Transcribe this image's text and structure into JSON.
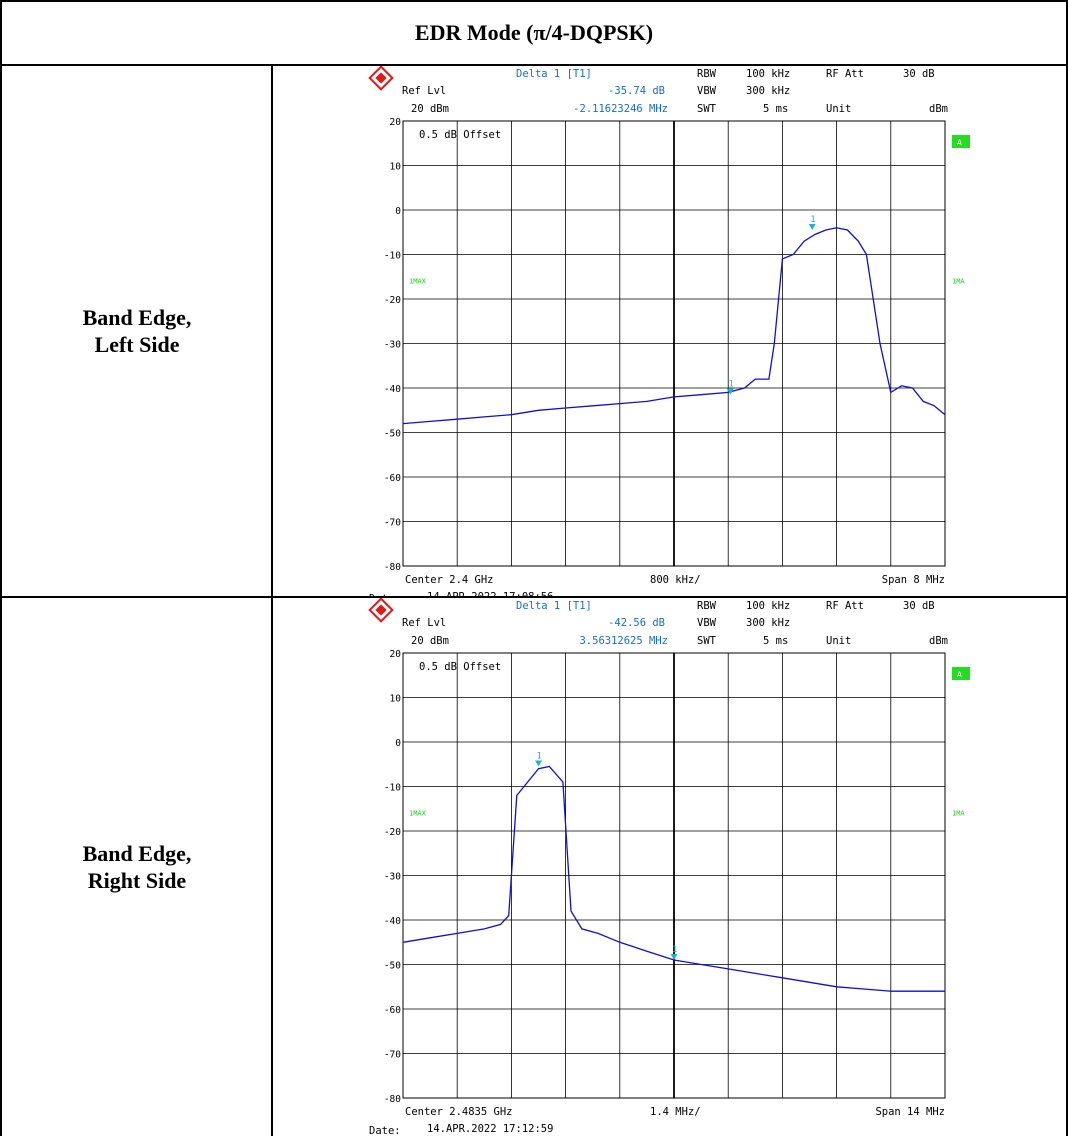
{
  "header": {
    "title": "EDR Mode (π/4-DQPSK)"
  },
  "rows": [
    {
      "label_line1": "Band Edge,",
      "label_line2": "Left Side"
    },
    {
      "label_line1": "Band Edge,",
      "label_line2": "Right Side"
    }
  ],
  "chart_data": [
    {
      "type": "line",
      "title": "Band Edge, Left Side",
      "instrument": {
        "marker_title": "Delta 1 [T1]",
        "marker_level": "-35.74 dB",
        "marker_freq": "-2.11623246 MHz",
        "ref_lvl_label": "Ref Lvl",
        "ref_lvl_value": "20 dBm",
        "rbw_label": "RBW",
        "rbw_value": "100 kHz",
        "vbw_label": "VBW",
        "vbw_value": "300 kHz",
        "swt_label": "SWT",
        "swt_value": "5 ms",
        "rfatt_label": "RF Att",
        "rfatt_value": "30 dB",
        "unit_label": "Unit",
        "unit_value": "dBm",
        "offset_text": "0.5 dB Offset",
        "trace_label_left": "1MAX",
        "trace_label_right": "1MA",
        "a_badge": "A",
        "center_text": "Center 2.4 GHz",
        "div_text": "800 kHz/",
        "span_text": "Span 8 MHz",
        "date_label": "Date:",
        "date_value": "14.APR.2022  17:08:56"
      },
      "y_ticks": [
        "20",
        "10",
        "0",
        "-10",
        "-20",
        "-30",
        "-40",
        "-50",
        "-60",
        "-70",
        "-80"
      ],
      "ylim": [
        -80,
        20
      ],
      "xlim_div": [
        0,
        10
      ],
      "grid": true,
      "trace_color": "#1010cc",
      "trace_x": [
        0,
        0.5,
        1,
        1.5,
        2,
        2.5,
        3,
        3.5,
        4,
        4.5,
        5,
        5.5,
        6,
        6.3,
        6.5,
        6.75,
        6.85,
        7,
        7.2,
        7.4,
        7.6,
        7.8,
        8.0,
        8.2,
        8.4,
        8.55,
        8.8,
        9.0,
        9.2,
        9.4,
        9.6,
        9.8,
        10
      ],
      "trace_y": [
        -48,
        -47.5,
        -47,
        -46.5,
        -46,
        -45,
        -44.5,
        -44,
        -43.5,
        -43,
        -42,
        -41.5,
        -41,
        -40,
        -38,
        -38,
        -30,
        -11,
        -10,
        -7,
        -5.5,
        -4.5,
        -4,
        -4.5,
        -7,
        -10,
        -30,
        -41,
        -39.5,
        -40,
        -43,
        -44,
        -46
      ],
      "markers": [
        {
          "x": 6.04,
          "y": -41.5,
          "label": "1"
        },
        {
          "x": 7.55,
          "y": -4.5,
          "label": "1"
        }
      ]
    },
    {
      "type": "line",
      "title": "Band Edge, Right Side",
      "instrument": {
        "marker_title": "Delta 1 [T1]",
        "marker_level": "-42.56 dB",
        "marker_freq": "3.56312625 MHz",
        "ref_lvl_label": "Ref Lvl",
        "ref_lvl_value": "20 dBm",
        "rbw_label": "RBW",
        "rbw_value": "100 kHz",
        "vbw_label": "VBW",
        "vbw_value": "300 kHz",
        "swt_label": "SWT",
        "swt_value": "5 ms",
        "rfatt_label": "RF Att",
        "rfatt_value": "30 dB",
        "unit_label": "Unit",
        "unit_value": "dBm",
        "offset_text": "0.5 dB Offset",
        "trace_label_left": "1MAX",
        "trace_label_right": "1MA",
        "a_badge": "A",
        "center_text": "Center 2.4835 GHz",
        "div_text": "1.4 MHz/",
        "span_text": "Span 14 MHz",
        "date_label": "Date:",
        "date_value": "14.APR.2022  17:12:59"
      },
      "y_ticks": [
        "20",
        "10",
        "0",
        "-10",
        "-20",
        "-30",
        "-40",
        "-50",
        "-60",
        "-70",
        "-80"
      ],
      "ylim": [
        -80,
        20
      ],
      "xlim_div": [
        0,
        10
      ],
      "grid": true,
      "trace_color": "#1010cc",
      "trace_x": [
        0,
        0.5,
        1,
        1.5,
        1.8,
        1.95,
        2.1,
        2.3,
        2.5,
        2.7,
        2.95,
        3.1,
        3.3,
        3.6,
        4,
        4.5,
        5,
        5.5,
        6,
        6.5,
        7,
        7.5,
        8,
        8.5,
        9,
        9.5,
        10
      ],
      "trace_y": [
        -45,
        -44,
        -43,
        -42,
        -41,
        -39,
        -12,
        -9,
        -6,
        -5.5,
        -9,
        -38,
        -42,
        -43,
        -45,
        -47,
        -49,
        -50,
        -51,
        -52,
        -53,
        -54,
        -55,
        -55.5,
        -56,
        -56,
        -56
      ],
      "markers": [
        {
          "x": 2.5,
          "y": -5.5,
          "label": "1"
        },
        {
          "x": 5.0,
          "y": -49,
          "label": "1"
        }
      ]
    }
  ]
}
